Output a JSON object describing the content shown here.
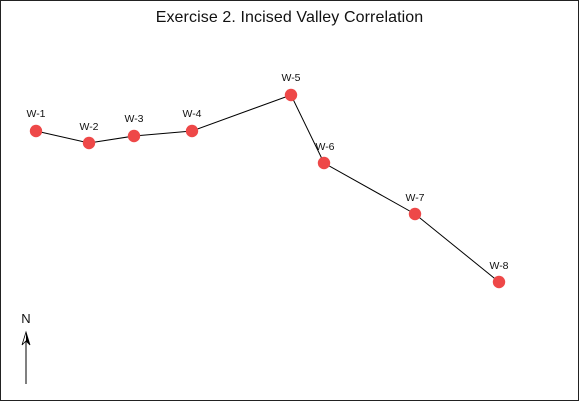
{
  "title": "Exercise 2. Incised Valley Correlation",
  "north_label": "N",
  "colors": {
    "well_marker": "#ee4848",
    "line": "#000000",
    "background": "#ffffff"
  },
  "icons": {
    "north_arrow": "north-arrow-icon"
  },
  "wells": [
    {
      "id": "W-1"
    },
    {
      "id": "W-2"
    },
    {
      "id": "W-3"
    },
    {
      "id": "W-4"
    },
    {
      "id": "W-5"
    },
    {
      "id": "W-6"
    },
    {
      "id": "W-7"
    },
    {
      "id": "W-8"
    }
  ]
}
